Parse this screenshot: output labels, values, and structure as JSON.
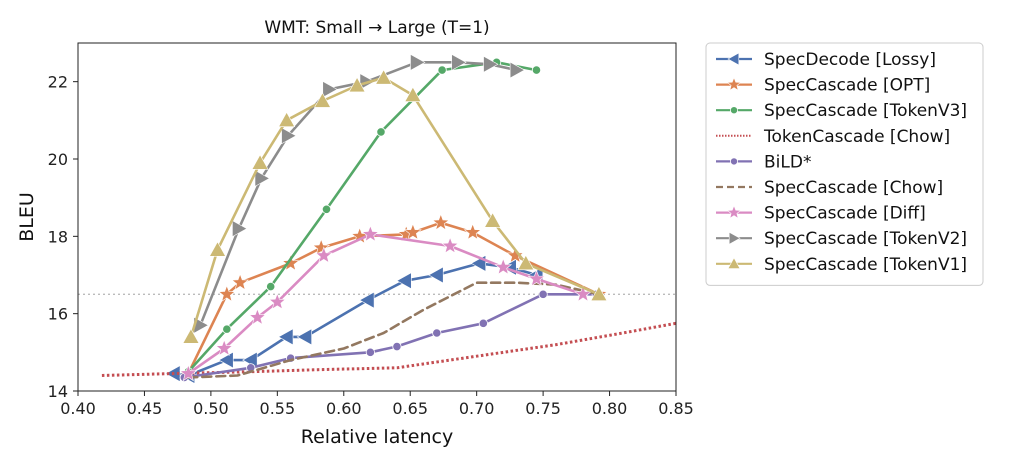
{
  "chart_data": {
    "type": "line",
    "title": "WMT:  Small → Large    (T=1)",
    "xlabel": "Relative latency",
    "ylabel": "BLEU",
    "xlim": [
      0.4,
      0.85
    ],
    "ylim": [
      14,
      23.0
    ],
    "xticks": [
      "0.40",
      "0.45",
      "0.50",
      "0.55",
      "0.60",
      "0.65",
      "0.70",
      "0.75",
      "0.80",
      "0.85"
    ],
    "yticks": [
      "14",
      "16",
      "18",
      "20",
      "22"
    ],
    "reference_line": {
      "y": 16.5,
      "color": "#bbbbbb",
      "style": "dotted"
    },
    "legend_position": "right, outside plot",
    "series": [
      {
        "name": "SpecDecode [Lossy]",
        "color": "#4c72b0",
        "marker": "triangle-left",
        "dash": "solid",
        "x": [
          0.472,
          0.483,
          0.512,
          0.53,
          0.557,
          0.571,
          0.618,
          0.646,
          0.67,
          0.702,
          0.725,
          0.745
        ],
        "y": [
          14.45,
          14.4,
          14.8,
          14.8,
          15.4,
          15.4,
          16.35,
          16.85,
          17.0,
          17.3,
          17.2,
          17.0
        ]
      },
      {
        "name": "SpecCascade [OPT]",
        "color": "#dd8452",
        "marker": "star",
        "dash": "solid",
        "x": [
          0.483,
          0.512,
          0.522,
          0.56,
          0.583,
          0.612,
          0.647,
          0.652,
          0.673,
          0.697,
          0.729,
          0.792
        ],
        "y": [
          14.45,
          16.5,
          16.8,
          17.3,
          17.7,
          18.0,
          18.05,
          18.1,
          18.35,
          18.1,
          17.5,
          16.5
        ]
      },
      {
        "name": "SpecCascade [TokenV3]",
        "color": "#55a868",
        "marker": "circle",
        "dash": "solid",
        "x": [
          0.483,
          0.512,
          0.545,
          0.587,
          0.628,
          0.674,
          0.715,
          0.745
        ],
        "y": [
          14.5,
          15.6,
          16.7,
          18.7,
          20.7,
          22.3,
          22.5,
          22.3
        ]
      },
      {
        "name": "TokenCascade [Chow]",
        "color": "#c44e52",
        "marker": "none",
        "dash": "dotted",
        "x": [
          0.418,
          0.47,
          0.53,
          0.58,
          0.64,
          0.7,
          0.76,
          0.81,
          0.85
        ],
        "y": [
          14.4,
          14.45,
          14.5,
          14.55,
          14.6,
          14.9,
          15.2,
          15.5,
          15.75
        ]
      },
      {
        "name": "BiLD*",
        "color": "#8172b3",
        "marker": "circle",
        "dash": "solid",
        "x": [
          0.48,
          0.53,
          0.56,
          0.62,
          0.64,
          0.67,
          0.705,
          0.75,
          0.78,
          0.79
        ],
        "y": [
          14.35,
          14.6,
          14.85,
          15.0,
          15.15,
          15.5,
          15.75,
          16.5,
          16.5,
          16.5
        ]
      },
      {
        "name": "SpecCascade [Chow]",
        "color": "#937860",
        "marker": "none",
        "dash": "dashed",
        "x": [
          0.483,
          0.52,
          0.56,
          0.6,
          0.63,
          0.66,
          0.7,
          0.73,
          0.76,
          0.792
        ],
        "y": [
          14.35,
          14.4,
          14.8,
          15.1,
          15.5,
          16.1,
          16.8,
          16.8,
          16.75,
          16.5
        ]
      },
      {
        "name": "SpecCascade [Diff]",
        "color": "#da8bc3",
        "marker": "star",
        "dash": "solid",
        "x": [
          0.483,
          0.51,
          0.535,
          0.55,
          0.585,
          0.62,
          0.68,
          0.72,
          0.745,
          0.78
        ],
        "y": [
          14.45,
          15.1,
          15.9,
          16.3,
          17.5,
          18.05,
          17.75,
          17.2,
          16.9,
          16.5
        ]
      },
      {
        "name": "SpecCascade [TokenV2]",
        "color": "#8c8c8c",
        "marker": "triangle-right",
        "dash": "solid",
        "x": [
          0.492,
          0.521,
          0.538,
          0.558,
          0.589,
          0.617,
          0.655,
          0.686,
          0.71,
          0.73
        ],
        "y": [
          15.7,
          18.2,
          19.5,
          20.6,
          21.8,
          22.0,
          22.5,
          22.5,
          22.45,
          22.3
        ]
      },
      {
        "name": "SpecCascade [TokenV1]",
        "color": "#ccb974",
        "marker": "triangle-up",
        "dash": "solid",
        "x": [
          0.485,
          0.505,
          0.537,
          0.557,
          0.584,
          0.61,
          0.63,
          0.652,
          0.712,
          0.737,
          0.792
        ],
        "y": [
          15.4,
          17.65,
          19.9,
          21.0,
          21.5,
          21.9,
          22.1,
          21.65,
          18.4,
          17.3,
          16.5
        ]
      }
    ]
  }
}
